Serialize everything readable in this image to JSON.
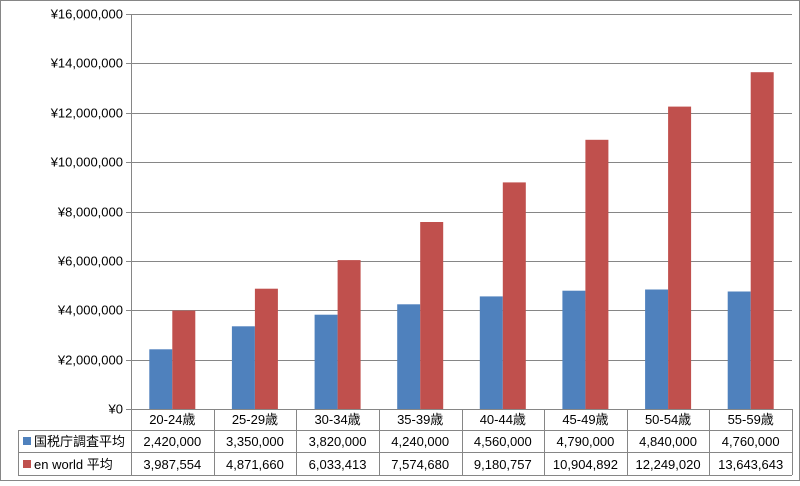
{
  "chart_data": {
    "type": "bar",
    "title": "",
    "xlabel": "",
    "ylabel": "",
    "ylim": [
      0,
      16000000
    ],
    "y_ticks": [
      0,
      2000000,
      4000000,
      6000000,
      8000000,
      10000000,
      12000000,
      14000000,
      16000000
    ],
    "y_tick_labels": [
      "¥0",
      "¥2,000,000",
      "¥4,000,000",
      "¥6,000,000",
      "¥8,000,000",
      "¥10,000,000",
      "¥12,000,000",
      "¥14,000,000",
      "¥16,000,000"
    ],
    "grid": true,
    "legend": "data-table",
    "categories": [
      "20-24歳",
      "25-29歳",
      "30-34歳",
      "35-39歳",
      "40-44歳",
      "45-49歳",
      "50-54歳",
      "55-59歳"
    ],
    "series": [
      {
        "name": "国税庁調査平均",
        "color": "#4F81BD",
        "values": [
          2420000,
          3350000,
          3820000,
          4240000,
          4560000,
          4790000,
          4840000,
          4760000
        ],
        "value_labels": [
          "2,420,000",
          "3,350,000",
          "3,820,000",
          "4,240,000",
          "4,560,000",
          "4,790,000",
          "4,840,000",
          "4,760,000"
        ]
      },
      {
        "name": "en world 平均",
        "color": "#C0504D",
        "values": [
          3987554,
          4871660,
          6033413,
          7574680,
          9180757,
          10904892,
          12249020,
          13643643
        ],
        "value_labels": [
          "3,987,554",
          "4,871,660",
          "6,033,413",
          "7,574,680",
          "9,180,757",
          "10,904,892",
          "12,249,020",
          "13,643,643"
        ]
      }
    ]
  }
}
